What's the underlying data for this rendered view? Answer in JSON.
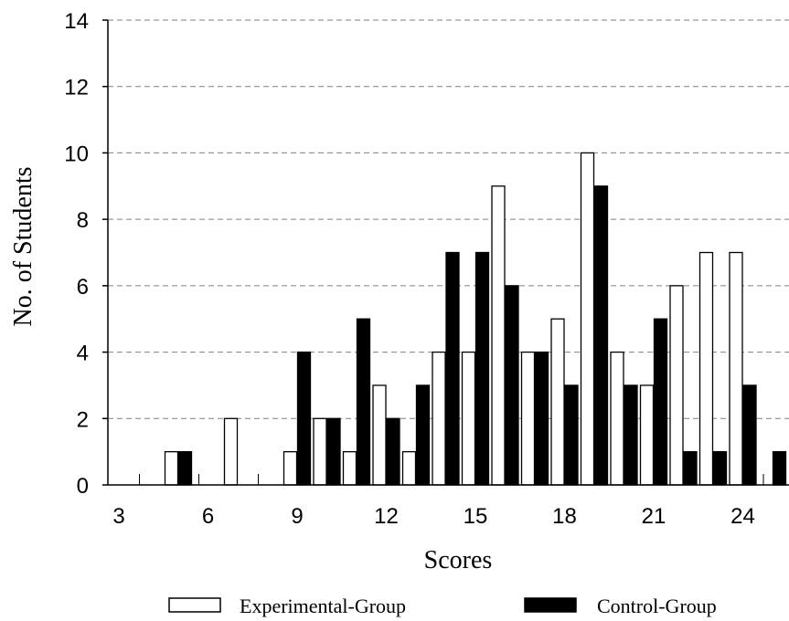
{
  "chart_data": {
    "type": "bar",
    "ylabel": "No. of Students",
    "xlabel": "Scores",
    "ylim": [
      0,
      14
    ],
    "yticks": [
      0,
      2,
      4,
      6,
      8,
      10,
      12,
      14
    ],
    "xlim": [
      3,
      25.3
    ],
    "xticks": [
      3,
      6,
      9,
      12,
      15,
      18,
      21,
      24
    ],
    "grid": "horizontal dashed",
    "legend": "bottom",
    "colors": {
      "experimental": "#ffffff",
      "control": "#000000",
      "outline": "#000000",
      "grid": "#808080"
    },
    "x": [
      3,
      4,
      5,
      6,
      7,
      8,
      9,
      10,
      11,
      12,
      13,
      14,
      15,
      16,
      17,
      18,
      19,
      20,
      21,
      22,
      23,
      24,
      25
    ],
    "series": [
      {
        "name": "Experimental-Group",
        "values": [
          0,
          0,
          1,
          0,
          2,
          0,
          1,
          2,
          1,
          3,
          1,
          4,
          4,
          9,
          4,
          5,
          10,
          4,
          3,
          6,
          7,
          7,
          0
        ]
      },
      {
        "name": "Control-Group",
        "values": [
          0,
          0,
          1,
          0,
          0,
          0,
          4,
          2,
          5,
          2,
          3,
          7,
          7,
          6,
          4,
          3,
          9,
          3,
          5,
          1,
          1,
          3,
          1
        ]
      }
    ]
  }
}
